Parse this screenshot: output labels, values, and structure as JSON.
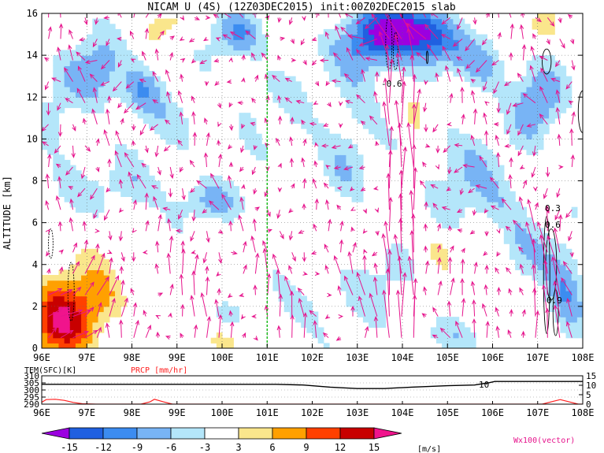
{
  "chart_data": [
    {
      "type": "heatmap",
      "title": "NICAM U (4S) (12Z03DEC2015) init:00Z02DEC2015 slab",
      "ylabel": "ALTITUDE [km]",
      "xlim": [
        96,
        108
      ],
      "ylim": [
        0,
        16
      ],
      "x_ticks": [
        "96E",
        "97E",
        "98E",
        "99E",
        "100E",
        "101E",
        "102E",
        "103E",
        "104E",
        "105E",
        "106E",
        "107E",
        "108E"
      ],
      "y_ticks": [
        "0",
        "2",
        "4",
        "6",
        "8",
        "10",
        "12",
        "14",
        "16"
      ],
      "grid": true,
      "marker_line_lon": 101,
      "contour_labels": [
        "-0.6",
        "0.3",
        "0.6",
        "0.9"
      ],
      "colorbar": {
        "unit": "[m/s]",
        "tick_labels": [
          "-15",
          "-12",
          "-9",
          "-6",
          "-3",
          "3",
          "6",
          "9",
          "12",
          "15"
        ],
        "colors": [
          "#9b00e0",
          "#2060e0",
          "#3c8cf0",
          "#78b4f5",
          "#b4e6fa",
          "#ffffff",
          "#fae68c",
          "#ffa000",
          "#ff4000",
          "#c80000",
          "#f0148c"
        ]
      },
      "vector_label": "Wx100(vector)",
      "vector_color": "#e6148c"
    },
    {
      "type": "line",
      "left_axis_label": "TEM(SFC)[K]",
      "right_axis_label": "PRCP [mm/hr]",
      "left_ticks": [
        "310",
        "305",
        "300",
        "295",
        "290"
      ],
      "right_ticks": [
        "15",
        "10",
        "5",
        "0"
      ],
      "contour_label": "10",
      "x_ticks": [
        "96E",
        "97E",
        "98E",
        "99E",
        "100E",
        "101E",
        "102E",
        "103E",
        "104E",
        "105E",
        "106E",
        "107E",
        "108E"
      ],
      "xlim": [
        96,
        108
      ],
      "ylim_left": [
        290,
        310
      ],
      "ylim_right": [
        0,
        15
      ],
      "series": [
        {
          "axis": "left",
          "color": "#000000",
          "x": [
            96,
            96.8,
            97.5,
            98.5,
            99.5,
            100.5,
            101.2,
            101.8,
            102.4,
            103,
            103.6,
            104.2,
            105,
            105.6,
            105.9,
            106.05,
            106.5,
            107.5,
            108
          ],
          "y": [
            304,
            304,
            304,
            304,
            304,
            304,
            304,
            303.5,
            302,
            301,
            301,
            302,
            303,
            303.5,
            305,
            306,
            306,
            306,
            306
          ]
        },
        {
          "axis": "right",
          "color": "#ff2020",
          "x": [
            96,
            96.1,
            96.3,
            96.5,
            96.7,
            96.9,
            97.2,
            98.2,
            98.4,
            98.5,
            98.7,
            98.9,
            99.5,
            107.1,
            107.3,
            107.5,
            107.7,
            107.9,
            108
          ],
          "y": [
            1,
            2.4,
            2.6,
            2,
            0.9,
            0.2,
            0,
            0,
            1.2,
            2.6,
            1.2,
            0,
            0,
            0,
            1.2,
            2.4,
            1.2,
            0,
            0
          ]
        }
      ]
    }
  ]
}
